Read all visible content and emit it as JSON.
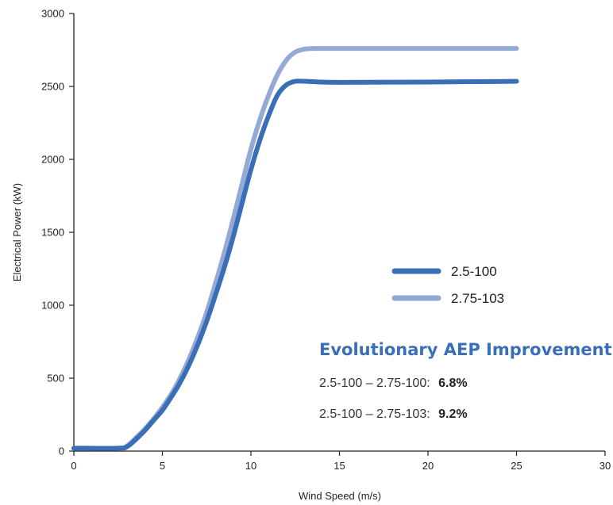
{
  "chart_data": {
    "type": "line",
    "title": "",
    "xlabel": "Wind Speed (m/s)",
    "ylabel": "Electrical Power (kW)",
    "xlim": [
      0,
      30
    ],
    "ylim": [
      0,
      3000
    ],
    "x_ticks": [
      0,
      5,
      10,
      15,
      20,
      25,
      30
    ],
    "y_ticks": [
      0,
      500,
      1000,
      1500,
      2000,
      2500,
      3000
    ],
    "grid": false,
    "legend_position": "center-right",
    "series": [
      {
        "name": "2.5-100",
        "color": "#3a6fb7",
        "x": [
          0,
          2.5,
          3,
          3.5,
          4,
          4.5,
          5,
          5.5,
          6,
          6.5,
          7,
          7.5,
          8,
          8.5,
          9,
          9.5,
          10,
          10.5,
          11,
          11.5,
          12,
          12.5,
          13,
          14,
          15,
          20,
          25
        ],
        "y": [
          20,
          20,
          30,
          80,
          140,
          210,
          280,
          370,
          470,
          590,
          730,
          890,
          1070,
          1260,
          1470,
          1700,
          1930,
          2130,
          2300,
          2440,
          2510,
          2535,
          2535,
          2530,
          2528,
          2530,
          2535
        ]
      },
      {
        "name": "2.75-103",
        "color": "#94a9d5",
        "x": [
          0,
          2.5,
          3,
          3.5,
          4,
          4.5,
          5,
          5.5,
          6,
          6.5,
          7,
          7.5,
          8,
          8.5,
          9,
          9.5,
          10,
          10.5,
          11,
          11.5,
          12,
          12.5,
          13,
          13.5,
          14,
          15,
          20,
          25
        ],
        "y": [
          20,
          20,
          35,
          90,
          150,
          220,
          300,
          390,
          500,
          630,
          780,
          950,
          1150,
          1360,
          1590,
          1830,
          2070,
          2270,
          2440,
          2580,
          2680,
          2735,
          2755,
          2760,
          2760,
          2760,
          2760,
          2760
        ]
      }
    ]
  },
  "aep": {
    "title": "Evolutionary AEP Improvement",
    "title_color": "#3a6fb7",
    "rows": [
      {
        "label": "2.5-100 – 2.75-100:",
        "value": "6.8%"
      },
      {
        "label": "2.5-100 – 2.75-103:",
        "value": "9.2%"
      }
    ]
  }
}
